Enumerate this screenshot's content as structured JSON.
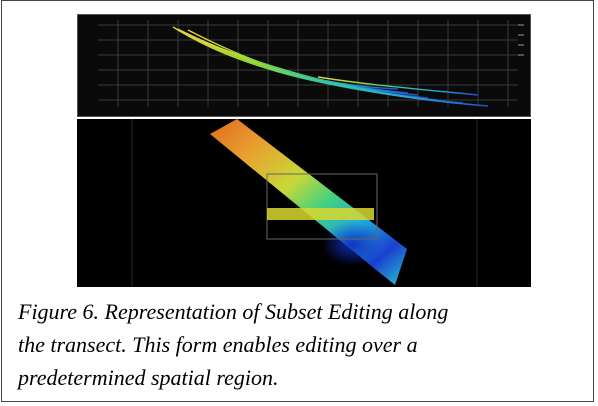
{
  "figure": {
    "caption_lines": [
      "Figure 6. Representation of Subset Editing along",
      "the transect. This form enables editing over a",
      "predetermined spatial region."
    ],
    "colors": {
      "background_plot": "#0a0a0a",
      "grid": "#3a3a3a",
      "swath_warm": "#e8a030",
      "swath_mid": "#2ec8a0",
      "swath_deep": "#1a3fd0",
      "subset_band": "#d8d830"
    }
  }
}
